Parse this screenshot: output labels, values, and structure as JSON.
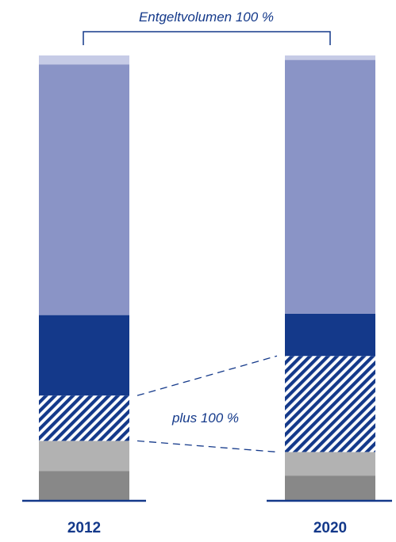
{
  "chart_data": {
    "type": "bar",
    "stacked": true,
    "title": "Entgeltvolumen 100 %",
    "annotation": "plus 100 %",
    "categories": [
      "2012",
      "2020"
    ],
    "ylim": [
      0,
      100
    ],
    "grid": false,
    "legend": "none",
    "series": [
      {
        "color": "#888888",
        "values": [
          6.5,
          5.5
        ]
      },
      {
        "color": "#b2b2b2",
        "values": [
          6.8,
          5.3
        ]
      },
      {
        "color": "#14398a",
        "hatched": true,
        "values": [
          10.2,
          21.6
        ]
      },
      {
        "color": "#14398a",
        "values": [
          18.1,
          9.5
        ]
      },
      {
        "color": "#8a94c6",
        "values": [
          56.4,
          57.1
        ]
      },
      {
        "color": "#c6cbe6",
        "values": [
          2.0,
          1.0
        ]
      }
    ],
    "colors": {
      "axis": "#14398a",
      "text": "#14398a",
      "bracket": "#14398a"
    }
  }
}
